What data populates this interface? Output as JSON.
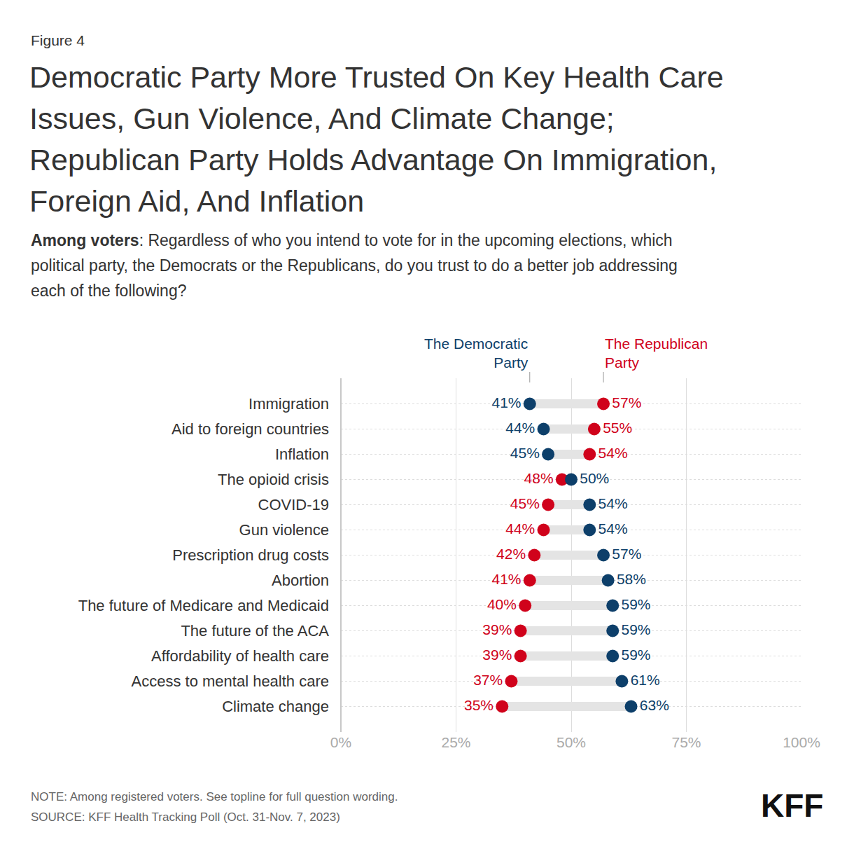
{
  "chart_data": {
    "type": "dumbbell",
    "figure_label": "Figure 4",
    "title": "Democratic Party More Trusted On Key Health Care Issues, Gun Violence, And Climate Change; Republican Party Holds Advantage On Immigration, Foreign Aid, And Inflation",
    "subtitle": "Among voters: Regardless of who you intend to vote for in the upcoming elections, which political party, the Democrats or the Republicans, do you trust to do a better job addressing each of the following?",
    "categories": [
      "Immigration",
      "Aid to foreign countries",
      "Inflation",
      "The opioid crisis",
      "COVID-19",
      "Gun violence",
      "Prescription drug costs",
      "Abortion",
      "The future of Medicare and Medicaid",
      "The future of the ACA",
      "Affordability of health care",
      "Access to mental health care",
      "Climate change"
    ],
    "series": [
      {
        "name": "The Democratic Party",
        "color": "#0d3f6a",
        "values": [
          41,
          44,
          45,
          50,
          54,
          54,
          57,
          58,
          59,
          59,
          59,
          61,
          63
        ],
        "value_labels": [
          "41%",
          "44%",
          "45%",
          "50%",
          "54%",
          "54%",
          "57%",
          "58%",
          "59%",
          "59%",
          "59%",
          "61%",
          "63%"
        ]
      },
      {
        "name": "The Republican Party",
        "color": "#d0021b",
        "values": [
          57,
          55,
          54,
          48,
          45,
          44,
          42,
          41,
          40,
          39,
          39,
          37,
          35
        ],
        "value_labels": [
          "57%",
          "55%",
          "54%",
          "48%",
          "45%",
          "44%",
          "42%",
          "41%",
          "40%",
          "39%",
          "39%",
          "37%",
          "35%"
        ]
      }
    ],
    "orientation": "horizontal",
    "xlim": [
      0,
      100
    ],
    "xticks": [
      {
        "value": 0,
        "label": "0%"
      },
      {
        "value": 25,
        "label": "25%"
      },
      {
        "value": 50,
        "label": "50%"
      },
      {
        "value": 75,
        "label": "75%"
      },
      {
        "value": 100,
        "label": "100%"
      }
    ],
    "grid": true,
    "data_labels": true,
    "note": "NOTE: Among registered voters. See topline for full question wording.",
    "source": "SOURCE: KFF Health Tracking Poll (Oct. 31-Nov. 7, 2023)",
    "logo": "KFF"
  }
}
